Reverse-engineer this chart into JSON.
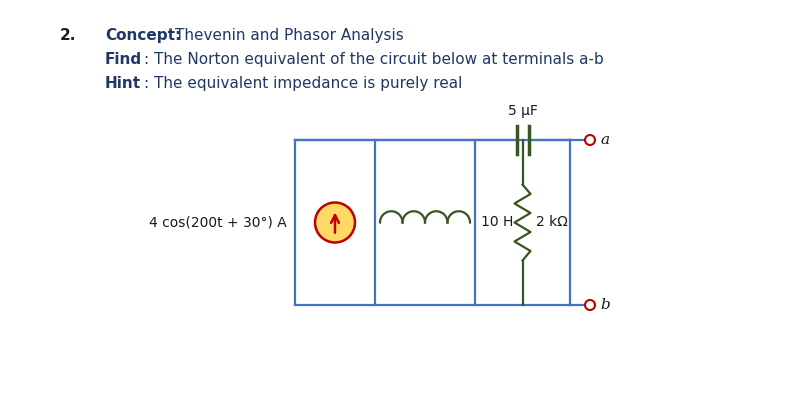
{
  "title_number": "2.",
  "concept_label": "Concept:",
  "concept_text": "Thevenin and Phasor Analysis",
  "find_label": "Find",
  "find_colon": ":",
  "find_text": " The Norton equivalent of the circuit below at terminals a-b",
  "hint_label": "Hint",
  "hint_colon": ":",
  "hint_text": " The equivalent impedance is purely real",
  "source_label": "4 cos(200t + 30°) A",
  "inductor_label": "10 H",
  "resistor_label": "2 kΩ",
  "capacitor_label": "5 μF",
  "terminal_a": "a",
  "terminal_b": "b",
  "bg_color": "#ffffff",
  "circuit_color": "#4472c4",
  "component_color_inductor": "#375623",
  "component_color_resistor": "#375623",
  "component_color_capacitor": "#375623",
  "source_circle_edge": "#c00000",
  "source_circle_fill": "#ffd966",
  "source_arrow_color": "#c00000",
  "terminal_color": "#c00000",
  "text_color_black": "#1a1a1a",
  "text_color_label": "#1f3864",
  "circuit_lw": 1.6,
  "fig_width": 8.01,
  "fig_height": 3.97,
  "dpi": 100
}
